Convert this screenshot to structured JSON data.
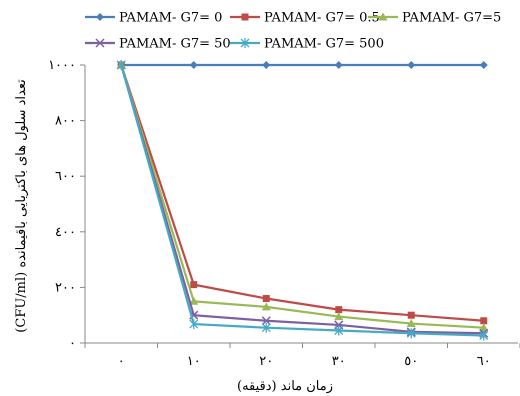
{
  "chart_data": {
    "type": "line",
    "x": [
      "٠",
      "١٠",
      "٢٠",
      "٣٠",
      "٥٠",
      "٦٠"
    ],
    "x_values": [
      0,
      10,
      20,
      30,
      50,
      60
    ],
    "yticks": [
      "٠",
      "٢٠٠",
      "٤٠٠",
      "٦٠٠",
      "٨٠٠",
      "١٠٠٠"
    ],
    "ylim": [
      0,
      1000
    ],
    "xlabel": "زمان ماند (دقیقه)",
    "ylabel": "تعداد سلول های باکتریایی باقیمانده (CFU/ml)",
    "grid": false,
    "legend": "top",
    "series": [
      {
        "name": "PAMAM- G7= 0",
        "color": "#4a7ebb",
        "marker": "diamond",
        "values": [
          1000,
          1000,
          1000,
          1000,
          1000,
          1000
        ]
      },
      {
        "name": "PAMAM- G7= 0.5",
        "color": "#be4b48",
        "marker": "square",
        "values": [
          1000,
          210,
          160,
          120,
          100,
          80
        ]
      },
      {
        "name": "PAMAM- G7=5",
        "color": "#98b954",
        "marker": "triangle",
        "values": [
          1000,
          150,
          130,
          95,
          70,
          55
        ]
      },
      {
        "name": "PAMAM- G7= 50",
        "color": "#7d60a0",
        "marker": "x",
        "values": [
          1000,
          100,
          80,
          65,
          40,
          35
        ]
      },
      {
        "name": "PAMAM- G7= 500",
        "color": "#46aac5",
        "marker": "star",
        "values": [
          1000,
          68,
          55,
          45,
          35,
          27
        ]
      }
    ]
  }
}
